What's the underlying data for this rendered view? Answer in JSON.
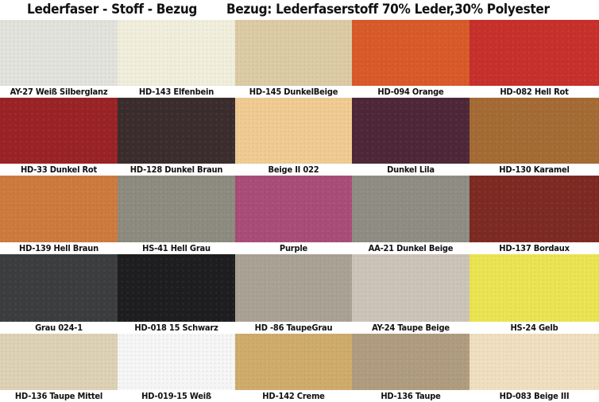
{
  "title": {
    "left": "Lederfaser  - Stoff - Bezug",
    "right": "Bezug: Lederfaserstoff 70% Leder,30% Polyester"
  },
  "swatches": [
    {
      "label": "AY-27 Weiß Silberglanz",
      "color": "#e3e3dd"
    },
    {
      "label": "HD-143 Elfenbein",
      "color": "#f1efdc"
    },
    {
      "label": "HD-145 DunkelBeige",
      "color": "#dccba4"
    },
    {
      "label": "HD-094 Orange",
      "color": "#d95a2a"
    },
    {
      "label": "HD-082 Hell Rot",
      "color": "#c8302c"
    },
    {
      "label": "HD-33 Dunkel Rot",
      "color": "#9a2326"
    },
    {
      "label": "HD-128 Dunkel Braun",
      "color": "#3b2d2e"
    },
    {
      "label": "Beige II 022",
      "color": "#f0cc93"
    },
    {
      "label": "Dunkel Lila",
      "color": "#4e2738"
    },
    {
      "label": "HD-130 Karamel",
      "color": "#a56b35"
    },
    {
      "label": "HD-139 Hell Braun",
      "color": "#cf7a3e"
    },
    {
      "label": "HS-41 Hell Grau",
      "color": "#8e8c81"
    },
    {
      "label": "Purple",
      "color": "#a94d78"
    },
    {
      "label": "AA-21 Dunkel Beige",
      "color": "#8f8d84"
    },
    {
      "label": "HD-137 Bordaux",
      "color": "#7d2a22"
    },
    {
      "label": "Grau 024-1",
      "color": "#3c3d3e"
    },
    {
      "label": "HD-018 15 Schwarz",
      "color": "#1e1d1f"
    },
    {
      "label": "HD -86 TaupeGrau",
      "color": "#aaa294"
    },
    {
      "label": "AY-24 Taupe Beige",
      "color": "#cdc4b9"
    },
    {
      "label": "HS-24 Gelb",
      "color": "#ece552"
    },
    {
      "label": "HD-136 Taupe Mittel",
      "color": "#ddd1b6"
    },
    {
      "label": "HD-019-15 Weiß",
      "color": "#f6f6f6"
    },
    {
      "label": "HD-142 Creme",
      "color": "#cfac6b"
    },
    {
      "label": "HD-136 Taupe",
      "color": "#b09d80"
    },
    {
      "label": "HD-083 Beige III",
      "color": "#f0e0c0"
    }
  ]
}
